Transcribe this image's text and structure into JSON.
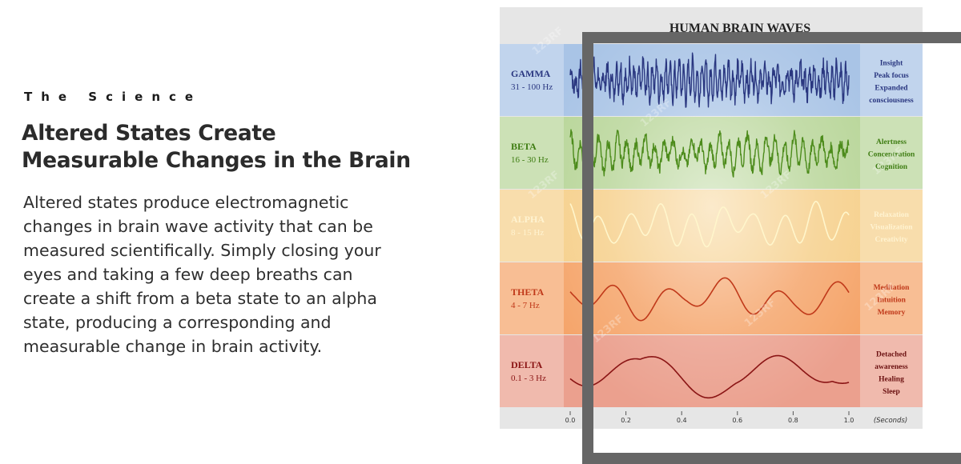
{
  "section": {
    "eyebrow": "The Science",
    "headline_line1": "Altered States Create",
    "headline_line2": "Measurable Changes in the Brain",
    "body": "Altered states produce electromagnetic changes in brain wave activity that can be measured scientifically. Simply closing your eyes and taking a few deep breaths can create a shift from a beta state to an alpha state, producing a corresponding and measurable change in brain activity."
  },
  "diagram": {
    "title": "HUMAN BRAIN WAVES",
    "watermark": "123RF",
    "bands": [
      {
        "name": "GAMMA",
        "range": "31 - 100 Hz",
        "effects": [
          "Insight",
          "Peak focus",
          "Expanded",
          "consciousness"
        ],
        "color": "#a9c4e6",
        "wave_color": "#2a3780",
        "text_color": "#2a3780",
        "effect_color": "#2a3780"
      },
      {
        "name": "BETA",
        "range": "16 - 30 Hz",
        "effects": [
          "Alertness",
          "Concentration",
          "Cognition"
        ],
        "color": "#b9d69a",
        "wave_color": "#4d8c1c",
        "text_color": "#3f7d13",
        "effect_color": "#3f7d13"
      },
      {
        "name": "ALPHA",
        "range": "8 - 15 Hz",
        "effects": [
          "Relaxation",
          "Visualization",
          "Creativity"
        ],
        "color": "#f6d08c",
        "wave_color": "#fff6cc",
        "text_color": "#fff3d1",
        "effect_color": "#fff3d1"
      },
      {
        "name": "THETA",
        "range": "4 - 7 Hz",
        "effects": [
          "Meditation",
          "Intuition",
          "Memory"
        ],
        "color": "#f5a56b",
        "wave_color": "#c0391a",
        "text_color": "#c0391a",
        "effect_color": "#c0391a"
      },
      {
        "name": "DELTA",
        "range": "0.1 - 3 Hz",
        "effects": [
          "Detached",
          "awareness",
          "Healing",
          "Sleep"
        ],
        "color": "#eba08e",
        "wave_color": "#8a1414",
        "text_color": "#8a1414",
        "effect_color": "#6a1010"
      }
    ],
    "axis": {
      "ticks": [
        "0.0",
        "0.2",
        "0.4",
        "0.6",
        "0.8",
        "1.0"
      ],
      "unit": "(Seconds)"
    }
  }
}
